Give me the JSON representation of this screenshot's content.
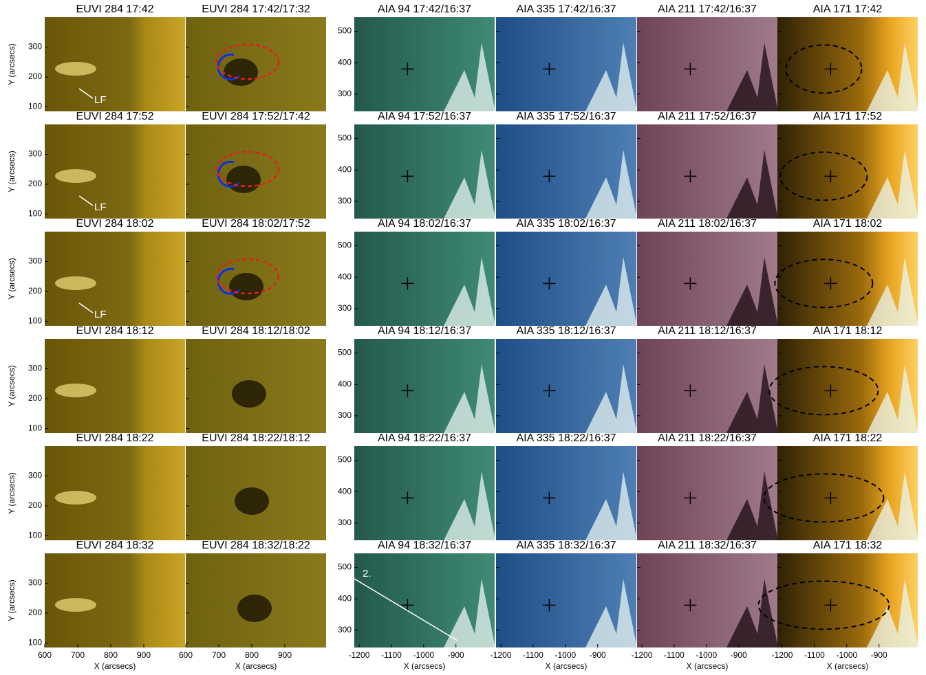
{
  "panels": {
    "rows": [
      {
        "titles": [
          "EUVI 284 17:42",
          "EUVI 284 17:42/17:32",
          "AIA 94 17:42/16:37",
          "AIA 335 17:42/16:37",
          "AIA 211 17:42/16:37",
          "AIA 171 17:42"
        ],
        "label": "LF"
      },
      {
        "titles": [
          "EUVI 284 17:52",
          "EUVI 284 17:52/17:42",
          "AIA 94 17:52/16:37",
          "AIA 335 17:52/16:37",
          "AIA 211 17:52/16:37",
          "AIA 171 17:52"
        ],
        "label": "LF"
      },
      {
        "titles": [
          "EUVI 284 18:02",
          "EUVI 284 18:02/17:52",
          "AIA 94 18:02/16:37",
          "AIA 335 18:02/16:37",
          "AIA 211 18:02/16:37",
          "AIA 171 18:02"
        ],
        "label": "LF"
      },
      {
        "titles": [
          "EUVI 284 18:12",
          "EUVI 284 18:12/18:02",
          "AIA 94 18:12/16:37",
          "AIA 335 18:12/16:37",
          "AIA 211 18:12/16:37",
          "AIA 171 18:12"
        ]
      },
      {
        "titles": [
          "EUVI 284 18:22",
          "EUVI 284 18:22/18:12",
          "AIA 94 18:22/16:37",
          "AIA 335 18:22/16:37",
          "AIA 211 18:22/16:37",
          "AIA 171 18:22"
        ]
      },
      {
        "titles": [
          "EUVI 284 18:32",
          "EUVI 284 18:32/18:22",
          "AIA 94 18:32/16:37",
          "AIA 335 18:32/16:37",
          "AIA 211 18:32/16:37",
          "AIA 171 18:32"
        ],
        "annotation": "2."
      }
    ]
  },
  "left_axis": {
    "xlabel": "X (arcsecs)",
    "ylabel": "Y (arcsecs)",
    "xlim": [
      600,
      1025
    ],
    "ylim": [
      85,
      400
    ],
    "xticks": [
      600,
      700,
      800,
      900
    ],
    "yticks": [
      100,
      200,
      300
    ]
  },
  "right_axis": {
    "xlabel": "X (arcsecs)",
    "xlim": [
      -1215,
      -780
    ],
    "ylim": [
      245,
      545
    ],
    "xticks": [
      -1200,
      -1100,
      -1000,
      -900
    ],
    "yticks": [
      300,
      400,
      500
    ]
  }
}
